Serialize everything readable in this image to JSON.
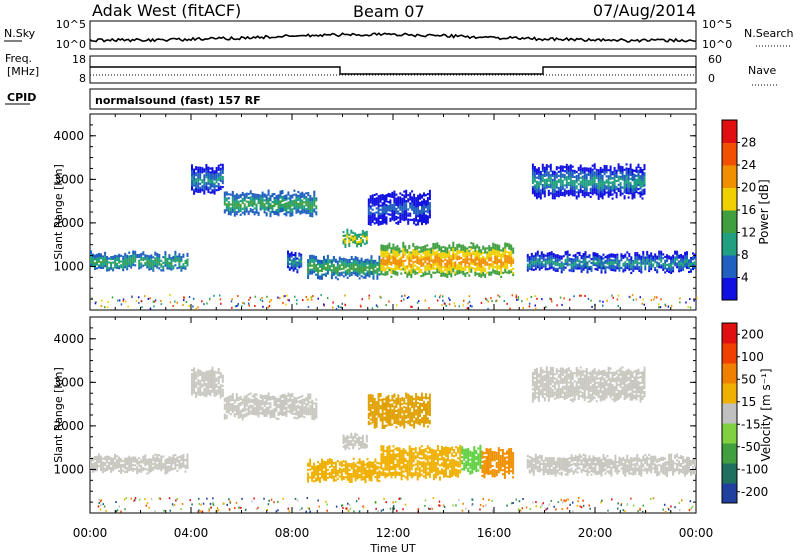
{
  "header": {
    "station": "Adak West (fitACF)",
    "beam": "Beam 07",
    "date": "07/Aug/2014"
  },
  "panels": {
    "nsky_label": "N.Sky",
    "nsky_ticks": [
      "10^5",
      "10^0"
    ],
    "nsearch_label": "N.Search",
    "nsearch_ticks": [
      "10^5",
      "10^0"
    ],
    "freq_label": "Freq.",
    "freq_unit": "[MHz]",
    "freq_ticks": [
      "18",
      "8"
    ],
    "nave_label": "Nave",
    "nave_ticks": [
      "60",
      "0"
    ],
    "cpid_label": "CPID",
    "cpid_text": "normalsound (fast) 157 RF"
  },
  "chart_data": [
    {
      "type": "heatmap",
      "panel": "power",
      "xlabel": "Time UT",
      "ylabel": "Slant Range [km]",
      "xticks": [
        "00:00",
        "04:00",
        "08:00",
        "12:00",
        "16:00",
        "20:00",
        "00:00"
      ],
      "xlim": [
        0,
        24
      ],
      "ylim": [
        0,
        4500
      ],
      "yticks": [
        "1000",
        "2000",
        "3000",
        "4000"
      ],
      "colorbar": {
        "label": "Power [dB]",
        "ticks": [
          "4",
          "8",
          "12",
          "16",
          "20",
          "24",
          "28"
        ],
        "colors": [
          "#1010e0",
          "#2060c0",
          "#20a080",
          "#40a040",
          "#f0d000",
          "#f09000",
          "#f05000",
          "#e01010"
        ]
      },
      "bands": [
        {
          "t0": 0,
          "t1": 3.9,
          "r0": 950,
          "r1": 1300,
          "level": 3
        },
        {
          "t0": 4.0,
          "t1": 5.3,
          "r0": 2700,
          "r1": 3300,
          "level": 2
        },
        {
          "t0": 5.3,
          "t1": 9.0,
          "r0": 2200,
          "r1": 2700,
          "level": 3
        },
        {
          "t0": 7.8,
          "t1": 8.4,
          "r0": 900,
          "r1": 1300,
          "level": 2
        },
        {
          "t0": 8.6,
          "t1": 11.5,
          "r0": 750,
          "r1": 1200,
          "level": 3
        },
        {
          "t0": 10.0,
          "t1": 11.0,
          "r0": 1500,
          "r1": 1800,
          "level": 4
        },
        {
          "t0": 11.5,
          "t1": 16.8,
          "r0": 800,
          "r1": 1500,
          "level": 5
        },
        {
          "t0": 11.0,
          "t1": 13.5,
          "r0": 2000,
          "r1": 2700,
          "level": 1
        },
        {
          "t0": 17.5,
          "t1": 22.0,
          "r0": 2600,
          "r1": 3300,
          "level": 2
        },
        {
          "t0": 17.3,
          "t1": 24.0,
          "r0": 900,
          "r1": 1300,
          "level": 2
        }
      ]
    },
    {
      "type": "heatmap",
      "panel": "velocity",
      "xlabel": "Time UT",
      "ylabel": "Slant Range [km]",
      "xticks": [
        "00:00",
        "04:00",
        "08:00",
        "12:00",
        "16:00",
        "20:00",
        "00:00"
      ],
      "xlim": [
        0,
        24
      ],
      "ylim": [
        0,
        4500
      ],
      "yticks": [
        "1000",
        "2000",
        "3000",
        "4000"
      ],
      "colorbar": {
        "label": "Velocity [m s⁻¹]",
        "ticks": [
          "200",
          "100",
          "50",
          "15",
          "-15",
          "-50",
          "-100",
          "-200"
        ],
        "colors": [
          "#2040a0",
          "#207060",
          "#40a040",
          "#80d040",
          "#c0c0c0",
          "#f0b000",
          "#f08000",
          "#f04000",
          "#e01010"
        ]
      },
      "bands": [
        {
          "t0": 0,
          "t1": 3.9,
          "r0": 950,
          "r1": 1300,
          "color": "#c8c8c0"
        },
        {
          "t0": 4.0,
          "t1": 5.3,
          "r0": 2700,
          "r1": 3300,
          "color": "#c8c8c0"
        },
        {
          "t0": 5.3,
          "t1": 9.0,
          "r0": 2200,
          "r1": 2700,
          "color": "#c8c8c0"
        },
        {
          "t0": 8.6,
          "t1": 11.5,
          "r0": 750,
          "r1": 1200,
          "color": "#f0b000"
        },
        {
          "t0": 10.0,
          "t1": 11.0,
          "r0": 1500,
          "r1": 1800,
          "color": "#c8c8c0"
        },
        {
          "t0": 11.5,
          "t1": 14.7,
          "r0": 800,
          "r1": 1500,
          "color": "#f0b000"
        },
        {
          "t0": 14.7,
          "t1": 15.5,
          "r0": 950,
          "r1": 1500,
          "color": "#60d040"
        },
        {
          "t0": 15.5,
          "t1": 16.8,
          "r0": 850,
          "r1": 1450,
          "color": "#f09000"
        },
        {
          "t0": 11.0,
          "t1": 13.5,
          "r0": 2000,
          "r1": 2700,
          "color": "#e0a000"
        },
        {
          "t0": 17.5,
          "t1": 22.0,
          "r0": 2600,
          "r1": 3300,
          "color": "#c8c8c0"
        },
        {
          "t0": 17.3,
          "t1": 24.0,
          "r0": 900,
          "r1": 1300,
          "color": "#c8c8c0"
        }
      ]
    }
  ]
}
